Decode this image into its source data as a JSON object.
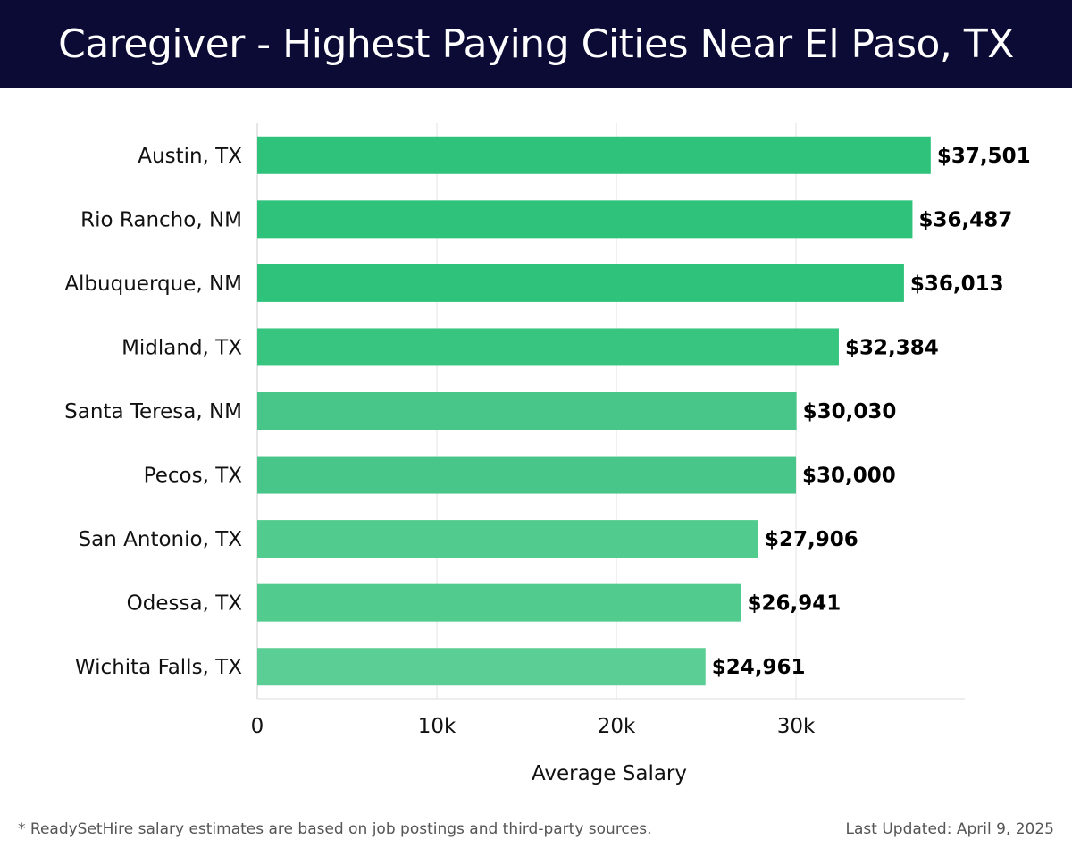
{
  "header": {
    "title": "Caregiver - Highest Paying Cities Near El Paso, TX"
  },
  "footer": {
    "note": "* ReadySetHire salary estimates are based on job postings and third-party sources.",
    "updated": "Last Updated: April 9, 2025"
  },
  "chart_data": {
    "type": "bar",
    "orientation": "horizontal",
    "title": "Caregiver - Highest Paying Cities Near El Paso, TX",
    "xlabel": "Average Salary",
    "ylabel": "",
    "xlim": [
      0,
      39400
    ],
    "xticks": [
      0,
      10000,
      20000,
      30000
    ],
    "xtick_labels": [
      "0",
      "10k",
      "20k",
      "30k"
    ],
    "grid": "vertical",
    "categories": [
      "Austin, TX",
      "Rio Rancho, NM",
      "Albuquerque, NM",
      "Midland, TX",
      "Santa Teresa, NM",
      "Pecos, TX",
      "San Antonio, TX",
      "Odessa, TX",
      "Wichita Falls, TX"
    ],
    "values": [
      37501,
      36487,
      36013,
      32384,
      30030,
      30000,
      27906,
      26941,
      24961
    ],
    "value_labels": [
      "$37,501",
      "$36,487",
      "$36,013",
      "$32,384",
      "$30,030",
      "$30,000",
      "$27,906",
      "$26,941",
      "$24,961"
    ],
    "colors": [
      "#2ec27a",
      "#2ec27a",
      "#2ec27a",
      "#38c57f",
      "#48c588",
      "#48c588",
      "#52cb8e",
      "#52cb8e",
      "#5bce95"
    ]
  }
}
